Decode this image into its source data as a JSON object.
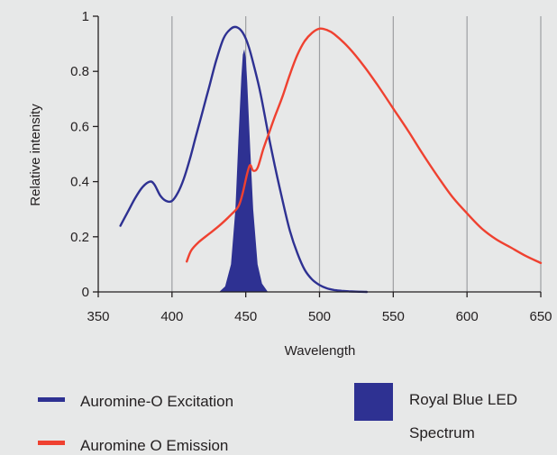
{
  "chart_data": {
    "type": "line",
    "xlabel": "Wavelength",
    "ylabel": "Relative intensity",
    "xlim": [
      350,
      650
    ],
    "ylim": [
      0,
      1
    ],
    "x_ticks": [
      "350",
      "400",
      "450",
      "500",
      "550",
      "600",
      "650"
    ],
    "y_ticks": [
      "0",
      "0.2",
      "0.4",
      "0.6",
      "0.8",
      "1"
    ],
    "grid": "vertical",
    "series": [
      {
        "name": "Auromine-O Excitation",
        "kind": "line",
        "color": "#2e3192",
        "x": [
          365,
          370,
          375,
          380,
          385,
          388,
          392,
          396,
          400,
          404,
          408,
          412,
          416,
          420,
          425,
          430,
          435,
          440,
          444,
          448,
          452,
          456,
          460,
          465,
          470,
          475,
          480,
          485,
          490,
          495,
          500,
          505,
          510,
          515,
          520,
          525,
          532
        ],
        "y": [
          0.24,
          0.29,
          0.34,
          0.38,
          0.4,
          0.39,
          0.35,
          0.33,
          0.33,
          0.36,
          0.41,
          0.48,
          0.56,
          0.64,
          0.74,
          0.84,
          0.92,
          0.955,
          0.96,
          0.94,
          0.89,
          0.81,
          0.72,
          0.58,
          0.45,
          0.33,
          0.22,
          0.14,
          0.08,
          0.045,
          0.025,
          0.013,
          0.007,
          0.004,
          0.002,
          0.001,
          0.0
        ]
      },
      {
        "name": "Auromine O Emission",
        "kind": "line",
        "color": "#ef4130",
        "x": [
          410,
          413,
          418,
          425,
          432,
          440,
          445,
          448,
          451,
          453,
          455,
          458,
          462,
          466,
          470,
          475,
          480,
          485,
          490,
          495,
          500,
          505,
          510,
          520,
          530,
          540,
          550,
          560,
          570,
          580,
          590,
          600,
          610,
          620,
          630,
          640,
          650
        ],
        "y": [
          0.11,
          0.15,
          0.18,
          0.21,
          0.24,
          0.28,
          0.31,
          0.36,
          0.43,
          0.46,
          0.44,
          0.45,
          0.52,
          0.58,
          0.64,
          0.71,
          0.79,
          0.86,
          0.91,
          0.94,
          0.955,
          0.95,
          0.935,
          0.885,
          0.82,
          0.745,
          0.665,
          0.585,
          0.5,
          0.42,
          0.345,
          0.285,
          0.23,
          0.19,
          0.16,
          0.13,
          0.105
        ]
      },
      {
        "name": "Royal Blue LED Spectrum",
        "kind": "area",
        "color": "#2e3192",
        "x": [
          432,
          436,
          440,
          443,
          445,
          447,
          448,
          449,
          450,
          451,
          453,
          455,
          458,
          461,
          465
        ],
        "y": [
          0.0,
          0.02,
          0.1,
          0.3,
          0.55,
          0.78,
          0.86,
          0.88,
          0.85,
          0.76,
          0.52,
          0.3,
          0.1,
          0.03,
          0.0
        ]
      }
    ],
    "legend": {
      "placement": "bottom",
      "items": [
        {
          "label": "Auromine-O Excitation",
          "marker": "line",
          "color": "#2e3192"
        },
        {
          "label": "Auromine O Emission",
          "marker": "line",
          "color": "#ef4130"
        },
        {
          "label_lines": [
            "Royal Blue LED",
            "Spectrum"
          ],
          "marker": "square",
          "color": "#2e3192"
        }
      ]
    },
    "colors": {
      "background": "#e7e8e8",
      "grid": "#9d9fa2",
      "axis": "#231f20"
    }
  }
}
